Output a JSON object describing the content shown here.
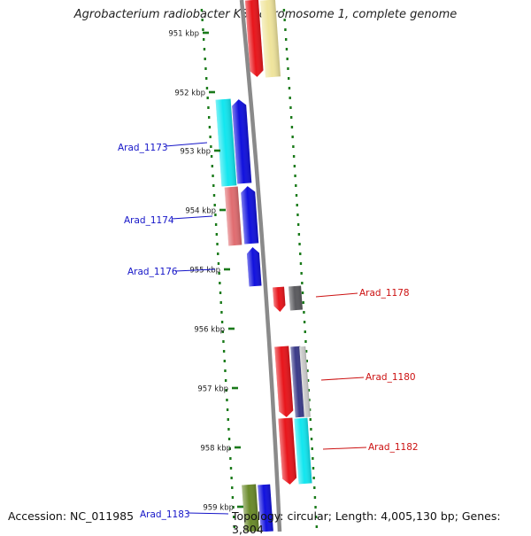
{
  "title": "Agrobacterium radiobacter K84 chromosome 1, complete genome",
  "accession": "Accession: NC_011985",
  "topology": "Topology: circular; Length: 4,005,130 bp; Genes: 3,804",
  "colors": {
    "backbone": "#8a8a8a",
    "tick": "#1a7a1a",
    "left_label": "#1515c8",
    "right_label": "#cc1111"
  },
  "ticks": [
    {
      "label": "951 kbp"
    },
    {
      "label": "952 kbp"
    },
    {
      "label": "953 kbp"
    },
    {
      "label": "954 kbp"
    },
    {
      "label": "955 kbp"
    },
    {
      "label": "956 kbp"
    },
    {
      "label": "957 kbp"
    },
    {
      "label": "958 kbp"
    },
    {
      "label": "959 kbp"
    }
  ],
  "gene_labels": [
    {
      "label": "Arad_1173"
    },
    {
      "label": "Arad_1174"
    },
    {
      "label": "Arad_1176"
    },
    {
      "label": "Arad_1178"
    },
    {
      "label": "Arad_1180"
    },
    {
      "label": "Arad_1182"
    },
    {
      "label": "Arad_1183"
    }
  ],
  "genes": [
    {
      "color": "#e8151b"
    },
    {
      "color": "#efe49c"
    },
    {
      "color": "#12e6ef"
    },
    {
      "color": "#1111dd"
    },
    {
      "color": "#e06c70"
    },
    {
      "color": "#1111dd"
    },
    {
      "color": "#1111dd"
    },
    {
      "color": "#e8151b"
    },
    {
      "color": "#5a5a5e"
    },
    {
      "color": "#e8151b"
    },
    {
      "color": "#3a3a88"
    },
    {
      "color": "#c8c8c8"
    },
    {
      "color": "#e8151b"
    },
    {
      "color": "#12e6ef"
    },
    {
      "color": "#6a8a2a"
    },
    {
      "color": "#1111dd"
    }
  ]
}
